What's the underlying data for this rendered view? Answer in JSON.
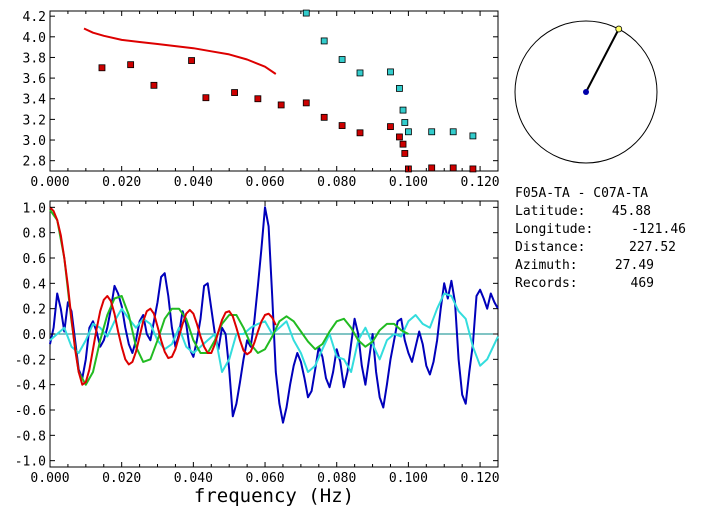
{
  "chart_data": [
    {
      "type": "scatter",
      "xlim": [
        0.0,
        0.125
      ],
      "ylim": [
        2.7,
        4.25
      ],
      "x_ticks": [
        "0.000",
        "0.020",
        "0.040",
        "0.060",
        "0.080",
        "0.100",
        "0.120"
      ],
      "y_ticks": [
        "2.8",
        "3.0",
        "3.2",
        "3.4",
        "3.6",
        "3.8",
        "4.0",
        "4.2"
      ],
      "grid": false,
      "series": [
        {
          "color": "#dd0000",
          "style": "line",
          "points": [
            [
              0.0095,
              4.08
            ],
            [
              0.012,
              4.04
            ],
            [
              0.015,
              4.01
            ],
            [
              0.02,
              3.97
            ],
            [
              0.025,
              3.95
            ],
            [
              0.03,
              3.93
            ],
            [
              0.035,
              3.91
            ],
            [
              0.04,
              3.89
            ],
            [
              0.045,
              3.86
            ],
            [
              0.05,
              3.83
            ],
            [
              0.055,
              3.78
            ],
            [
              0.06,
              3.71
            ],
            [
              0.063,
              3.64
            ]
          ]
        },
        {
          "color": "#cc0000",
          "style": "square-markers",
          "points": [
            [
              0.0145,
              3.7
            ],
            [
              0.0225,
              3.73
            ],
            [
              0.029,
              3.53
            ],
            [
              0.0395,
              3.77
            ],
            [
              0.0435,
              3.41
            ],
            [
              0.0515,
              3.46
            ],
            [
              0.058,
              3.4
            ],
            [
              0.0645,
              3.34
            ],
            [
              0.0715,
              3.36
            ],
            [
              0.0765,
              3.22
            ],
            [
              0.0815,
              3.14
            ],
            [
              0.0865,
              3.07
            ],
            [
              0.095,
              3.13
            ],
            [
              0.0975,
              3.03
            ],
            [
              0.099,
              2.87
            ],
            [
              0.0985,
              2.96
            ],
            [
              0.1,
              2.72
            ],
            [
              0.1065,
              2.73
            ],
            [
              0.1125,
              2.73
            ],
            [
              0.118,
              2.72
            ]
          ]
        },
        {
          "color": "#33cccc",
          "style": "square-markers",
          "points": [
            [
              0.0715,
              4.23
            ],
            [
              0.0765,
              3.96
            ],
            [
              0.0815,
              3.78
            ],
            [
              0.0865,
              3.65
            ],
            [
              0.095,
              3.66
            ],
            [
              0.0975,
              3.5
            ],
            [
              0.0985,
              3.29
            ],
            [
              0.099,
              3.17
            ],
            [
              0.1,
              3.08
            ],
            [
              0.1065,
              3.08
            ],
            [
              0.1125,
              3.08
            ],
            [
              0.118,
              3.04
            ]
          ]
        }
      ]
    },
    {
      "type": "line",
      "xlabel": "frequency (Hz)",
      "xlim": [
        0.0,
        0.125
      ],
      "ylim": [
        -1.05,
        1.05
      ],
      "x_ticks": [
        "0.000",
        "0.020",
        "0.040",
        "0.060",
        "0.080",
        "0.100",
        "0.120"
      ],
      "y_ticks": [
        "1.0",
        "0.8",
        "0.6",
        "0.4",
        "0.2",
        "0.0",
        "-0.2",
        "-0.4",
        "-0.6",
        "-0.8",
        "-1.0"
      ],
      "zero_line_color": "#008888",
      "series": [
        {
          "color": "#0000bb",
          "x": [
            0,
            0.001,
            0.002,
            0.003,
            0.004,
            0.005,
            0.006,
            0.007,
            0.008,
            0.009,
            0.01,
            0.011,
            0.012,
            0.013,
            0.014,
            0.015,
            0.016,
            0.017,
            0.018,
            0.019,
            0.02,
            0.021,
            0.022,
            0.023,
            0.024,
            0.025,
            0.026,
            0.027,
            0.028,
            0.029,
            0.03,
            0.031,
            0.032,
            0.033,
            0.034,
            0.035,
            0.036,
            0.037,
            0.038,
            0.039,
            0.04,
            0.041,
            0.042,
            0.043,
            0.044,
            0.045,
            0.046,
            0.047,
            0.048,
            0.049,
            0.05,
            0.051,
            0.052,
            0.053,
            0.054,
            0.055,
            0.056,
            0.057,
            0.058,
            0.059,
            0.06,
            0.061,
            0.062,
            0.063,
            0.064,
            0.065,
            0.066,
            0.067,
            0.068,
            0.069,
            0.07,
            0.071,
            0.072,
            0.073,
            0.074,
            0.075,
            0.076,
            0.077,
            0.078,
            0.079,
            0.08,
            0.081,
            0.082,
            0.083,
            0.084,
            0.085,
            0.086,
            0.087,
            0.088,
            0.089,
            0.09,
            0.091,
            0.092,
            0.093,
            0.094,
            0.095,
            0.096,
            0.097,
            0.098,
            0.099,
            0.1,
            0.101,
            0.102,
            0.103,
            0.104,
            0.105,
            0.106,
            0.107,
            0.108,
            0.109,
            0.11,
            0.111,
            0.112,
            0.113,
            0.114,
            0.115,
            0.116,
            0.117,
            0.118,
            0.119,
            0.12,
            0.121,
            0.122,
            0.123,
            0.124,
            0.125
          ],
          "y": [
            -0.08,
            0.05,
            0.32,
            0.2,
            0.02,
            0.25,
            0.18,
            -0.05,
            -0.28,
            -0.35,
            -0.2,
            0.05,
            0.1,
            0.02,
            -0.1,
            -0.05,
            0.05,
            0.2,
            0.38,
            0.32,
            0.22,
            0.05,
            -0.08,
            -0.15,
            -0.05,
            0.1,
            0.15,
            0.0,
            -0.05,
            0.1,
            0.25,
            0.45,
            0.48,
            0.3,
            0.05,
            -0.1,
            0.0,
            0.18,
            0.08,
            -0.12,
            -0.18,
            -0.05,
            0.12,
            0.38,
            0.4,
            0.2,
            0.0,
            -0.12,
            0.05,
            0.0,
            -0.28,
            -0.65,
            -0.55,
            -0.38,
            -0.2,
            -0.05,
            -0.1,
            0.1,
            0.38,
            0.68,
            1.0,
            0.85,
            0.3,
            -0.3,
            -0.55,
            -0.7,
            -0.58,
            -0.4,
            -0.25,
            -0.15,
            -0.22,
            -0.35,
            -0.5,
            -0.45,
            -0.28,
            -0.1,
            -0.18,
            -0.35,
            -0.42,
            -0.3,
            -0.12,
            -0.22,
            -0.42,
            -0.3,
            -0.08,
            0.12,
            0.0,
            -0.25,
            -0.4,
            -0.2,
            0.0,
            -0.3,
            -0.5,
            -0.58,
            -0.4,
            -0.2,
            -0.05,
            0.1,
            0.12,
            -0.05,
            -0.15,
            -0.22,
            -0.1,
            0.02,
            -0.08,
            -0.25,
            -0.32,
            -0.22,
            -0.05,
            0.2,
            0.4,
            0.28,
            0.42,
            0.25,
            -0.2,
            -0.48,
            -0.55,
            -0.3,
            -0.08,
            0.3,
            0.35,
            0.28,
            0.2,
            0.32,
            0.25,
            0.2
          ]
        },
        {
          "color": "#33dddd",
          "x": [
            0,
            0.002,
            0.004,
            0.006,
            0.008,
            0.01,
            0.012,
            0.014,
            0.016,
            0.018,
            0.02,
            0.022,
            0.024,
            0.026,
            0.028,
            0.03,
            0.032,
            0.034,
            0.036,
            0.038,
            0.04,
            0.042,
            0.044,
            0.046,
            0.048,
            0.05,
            0.052,
            0.054,
            0.056,
            0.058,
            0.06,
            0.062,
            0.064,
            0.066,
            0.068,
            0.07,
            0.072,
            0.074,
            0.076,
            0.078,
            0.08,
            0.082,
            0.084,
            0.086,
            0.088,
            0.09,
            0.092,
            0.094,
            0.096,
            0.098,
            0.1,
            0.102,
            0.104,
            0.106,
            0.108,
            0.11,
            0.112,
            0.114,
            0.116,
            0.118,
            0.12,
            0.122,
            0.124,
            0.125
          ],
          "y": [
            -0.05,
            0.0,
            0.05,
            -0.1,
            -0.15,
            -0.05,
            0.08,
            0.05,
            -0.02,
            0.1,
            0.2,
            0.12,
            0.05,
            0.12,
            0.08,
            -0.05,
            -0.12,
            -0.08,
            0.05,
            -0.1,
            -0.15,
            -0.1,
            -0.05,
            0.0,
            -0.3,
            -0.2,
            0.0,
            0.0,
            0.05,
            0.08,
            0.1,
            0.0,
            0.05,
            0.1,
            -0.05,
            -0.15,
            -0.3,
            -0.25,
            -0.12,
            0.0,
            -0.18,
            -0.2,
            -0.3,
            -0.05,
            0.05,
            -0.08,
            -0.2,
            -0.05,
            0.0,
            -0.02,
            0.1,
            0.15,
            0.08,
            0.05,
            0.2,
            0.32,
            0.3,
            0.18,
            0.12,
            -0.1,
            -0.25,
            -0.2,
            -0.08,
            -0.02
          ]
        },
        {
          "color": "#22bb22",
          "x": [
            0,
            0.002,
            0.004,
            0.006,
            0.008,
            0.01,
            0.012,
            0.014,
            0.016,
            0.018,
            0.02,
            0.022,
            0.024,
            0.026,
            0.028,
            0.03,
            0.032,
            0.034,
            0.036,
            0.038,
            0.04,
            0.042,
            0.044,
            0.046,
            0.048,
            0.05,
            0.052,
            0.054,
            0.056,
            0.058,
            0.06,
            0.062,
            0.064,
            0.066,
            0.068,
            0.07,
            0.072,
            0.074,
            0.076,
            0.078,
            0.08,
            0.082,
            0.084,
            0.086,
            0.088,
            0.09,
            0.092,
            0.094,
            0.096,
            0.098,
            0.1
          ],
          "y": [
            0.98,
            0.9,
            0.6,
            0.1,
            -0.3,
            -0.4,
            -0.3,
            -0.05,
            0.15,
            0.28,
            0.3,
            0.15,
            -0.1,
            -0.22,
            -0.2,
            -0.05,
            0.12,
            0.2,
            0.2,
            0.12,
            -0.05,
            -0.15,
            -0.15,
            -0.05,
            0.08,
            0.15,
            0.15,
            0.05,
            -0.08,
            -0.15,
            -0.12,
            -0.02,
            0.1,
            0.14,
            0.1,
            0.02,
            -0.06,
            -0.12,
            -0.08,
            0.02,
            0.1,
            0.12,
            0.05,
            -0.05,
            -0.1,
            -0.06,
            0.03,
            0.08,
            0.08,
            0.03,
            0.0
          ]
        },
        {
          "color": "#dd0000",
          "x": [
            0,
            0.001,
            0.002,
            0.003,
            0.004,
            0.005,
            0.006,
            0.007,
            0.008,
            0.009,
            0.01,
            0.011,
            0.012,
            0.013,
            0.014,
            0.015,
            0.016,
            0.017,
            0.018,
            0.019,
            0.02,
            0.021,
            0.022,
            0.023,
            0.024,
            0.025,
            0.026,
            0.027,
            0.028,
            0.029,
            0.03,
            0.031,
            0.032,
            0.033,
            0.034,
            0.035,
            0.036,
            0.037,
            0.038,
            0.039,
            0.04,
            0.041,
            0.042,
            0.043,
            0.044,
            0.045,
            0.046,
            0.047,
            0.048,
            0.049,
            0.05,
            0.051,
            0.052,
            0.053,
            0.054,
            0.055,
            0.056,
            0.057,
            0.058,
            0.059,
            0.06,
            0.061,
            0.062,
            0.063
          ],
          "y": [
            1.0,
            0.97,
            0.9,
            0.78,
            0.6,
            0.38,
            0.12,
            -0.12,
            -0.3,
            -0.4,
            -0.38,
            -0.28,
            -0.12,
            0.04,
            0.18,
            0.27,
            0.3,
            0.26,
            0.16,
            0.02,
            -0.1,
            -0.2,
            -0.24,
            -0.22,
            -0.14,
            -0.02,
            0.1,
            0.18,
            0.2,
            0.16,
            0.06,
            -0.05,
            -0.14,
            -0.19,
            -0.18,
            -0.12,
            -0.02,
            0.08,
            0.16,
            0.19,
            0.16,
            0.08,
            -0.02,
            -0.1,
            -0.15,
            -0.15,
            -0.08,
            0.02,
            0.11,
            0.17,
            0.18,
            0.14,
            0.05,
            -0.05,
            -0.13,
            -0.16,
            -0.14,
            -0.07,
            0.02,
            0.1,
            0.15,
            0.16,
            0.13,
            0.07
          ]
        }
      ]
    }
  ],
  "inset": {
    "azimuth_deg": 27.49,
    "circle_color": "#000000",
    "line_color": "#000000",
    "center_dot_color": "#0000aa",
    "end_marker_color": "#ffff66"
  },
  "info": {
    "pair": "F05A-TA - C07A-TA",
    "latitude_label": "Latitude:",
    "latitude_value": "45.88",
    "longitude_label": "Longitude:",
    "longitude_value": "-121.46",
    "distance_label": "Distance:",
    "distance_value": "227.52",
    "azimuth_label": "Azimuth:",
    "azimuth_value": "27.49",
    "records_label": "Records:",
    "records_value": "469"
  }
}
